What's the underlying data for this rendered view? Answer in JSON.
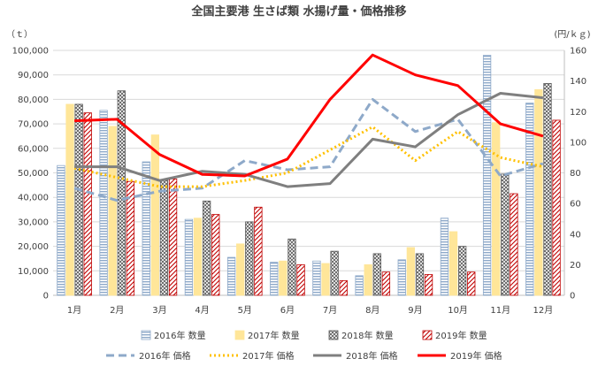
{
  "chart_data": {
    "type": "bar",
    "title": "全国主要港 生さば類 水揚げ量・価格推移",
    "ylabel_left": "（ｔ）",
    "ylabel_right": "(円/ｋｇ)",
    "categories": [
      "1月",
      "2月",
      "3月",
      "4月",
      "5月",
      "6月",
      "7月",
      "8月",
      "9月",
      "10月",
      "11月",
      "12月"
    ],
    "ylim_left": [
      0,
      100000
    ],
    "yticks_left": [
      "0",
      "10,000",
      "20,000",
      "30,000",
      "40,000",
      "50,000",
      "60,000",
      "70,000",
      "80,000",
      "90,000",
      "100,000"
    ],
    "ylim_right": [
      0,
      160
    ],
    "yticks_right": [
      "0",
      "20",
      "40",
      "60",
      "80",
      "100",
      "120",
      "140",
      "160"
    ],
    "grid": true,
    "legend_position": "bottom",
    "bar_series": [
      {
        "name": "2016年 数量",
        "color": "#8ea9c9",
        "pattern": "hstripe",
        "values": [
          53000,
          75500,
          54500,
          31000,
          15500,
          13500,
          14000,
          8000,
          14500,
          31500,
          98000,
          78500
        ]
      },
      {
        "name": "2017年 数量",
        "color": "#ffe699",
        "pattern": "solid",
        "values": [
          78000,
          69000,
          65500,
          31500,
          21000,
          14000,
          13000,
          12500,
          19500,
          26000,
          70500,
          84000
        ]
      },
      {
        "name": "2018年 数量",
        "color": "#595959",
        "pattern": "cross",
        "values": [
          78000,
          83500,
          47000,
          38500,
          30000,
          23000,
          18000,
          17000,
          17000,
          20000,
          49500,
          86500
        ]
      },
      {
        "name": "2019年 数量",
        "color": "#c00000",
        "pattern": "diag",
        "values": [
          74500,
          46500,
          47500,
          33000,
          36000,
          12500,
          6000,
          9500,
          8500,
          9500,
          41500,
          71500
        ]
      }
    ],
    "line_series": [
      {
        "name": "2016年 価格",
        "color": "#8ea9c9",
        "dash": "9,5",
        "values": [
          70,
          62,
          68,
          70,
          88,
          82,
          84,
          128,
          107,
          115,
          78,
          86
        ]
      },
      {
        "name": "2017年 価格",
        "color": "#ffc000",
        "dash": "2,3",
        "values": [
          83,
          77,
          71,
          71,
          75,
          80,
          95,
          110,
          88,
          107,
          90,
          84
        ]
      },
      {
        "name": "2018年 価格",
        "color": "#7f7f7f",
        "dash": "",
        "values": [
          84,
          84,
          75,
          81,
          79,
          71,
          73,
          102,
          97,
          118,
          132,
          129
        ]
      },
      {
        "name": "2019年 価格",
        "color": "#ff0000",
        "dash": "",
        "values": [
          114,
          115,
          92,
          79,
          78,
          89,
          128,
          157,
          144,
          137,
          112,
          104
        ]
      }
    ]
  }
}
